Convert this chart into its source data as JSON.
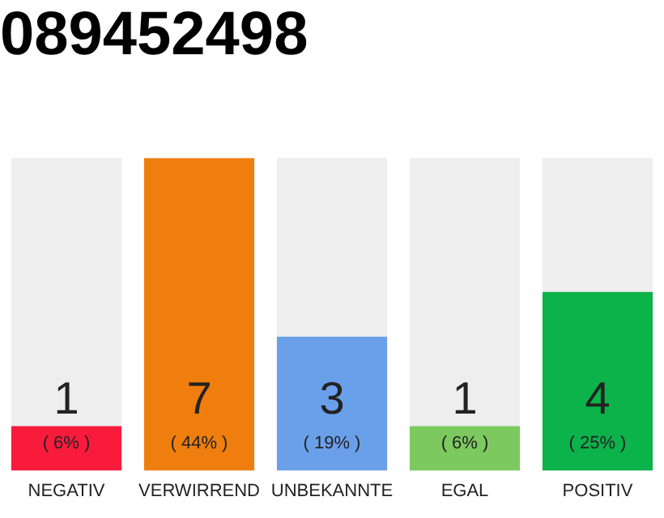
{
  "chart_data": {
    "type": "bar",
    "title": "089452498",
    "categories": [
      "NEGATIV",
      "VERWIRREND",
      "UNBEKANNTE",
      "EGAL",
      "POSITIV"
    ],
    "values": [
      1,
      7,
      3,
      1,
      4
    ],
    "colors": [
      "#f91b3c",
      "#f07e0e",
      "#6aa0e9",
      "#7cc95f",
      "#0cb24a"
    ],
    "value_labels": [
      "1\n( 6% )",
      "7\n( 44% )",
      "3\n( 19% )",
      "1\n( 6% )",
      "4\n( 25% )"
    ],
    "grid": false,
    "legend": false
  }
}
